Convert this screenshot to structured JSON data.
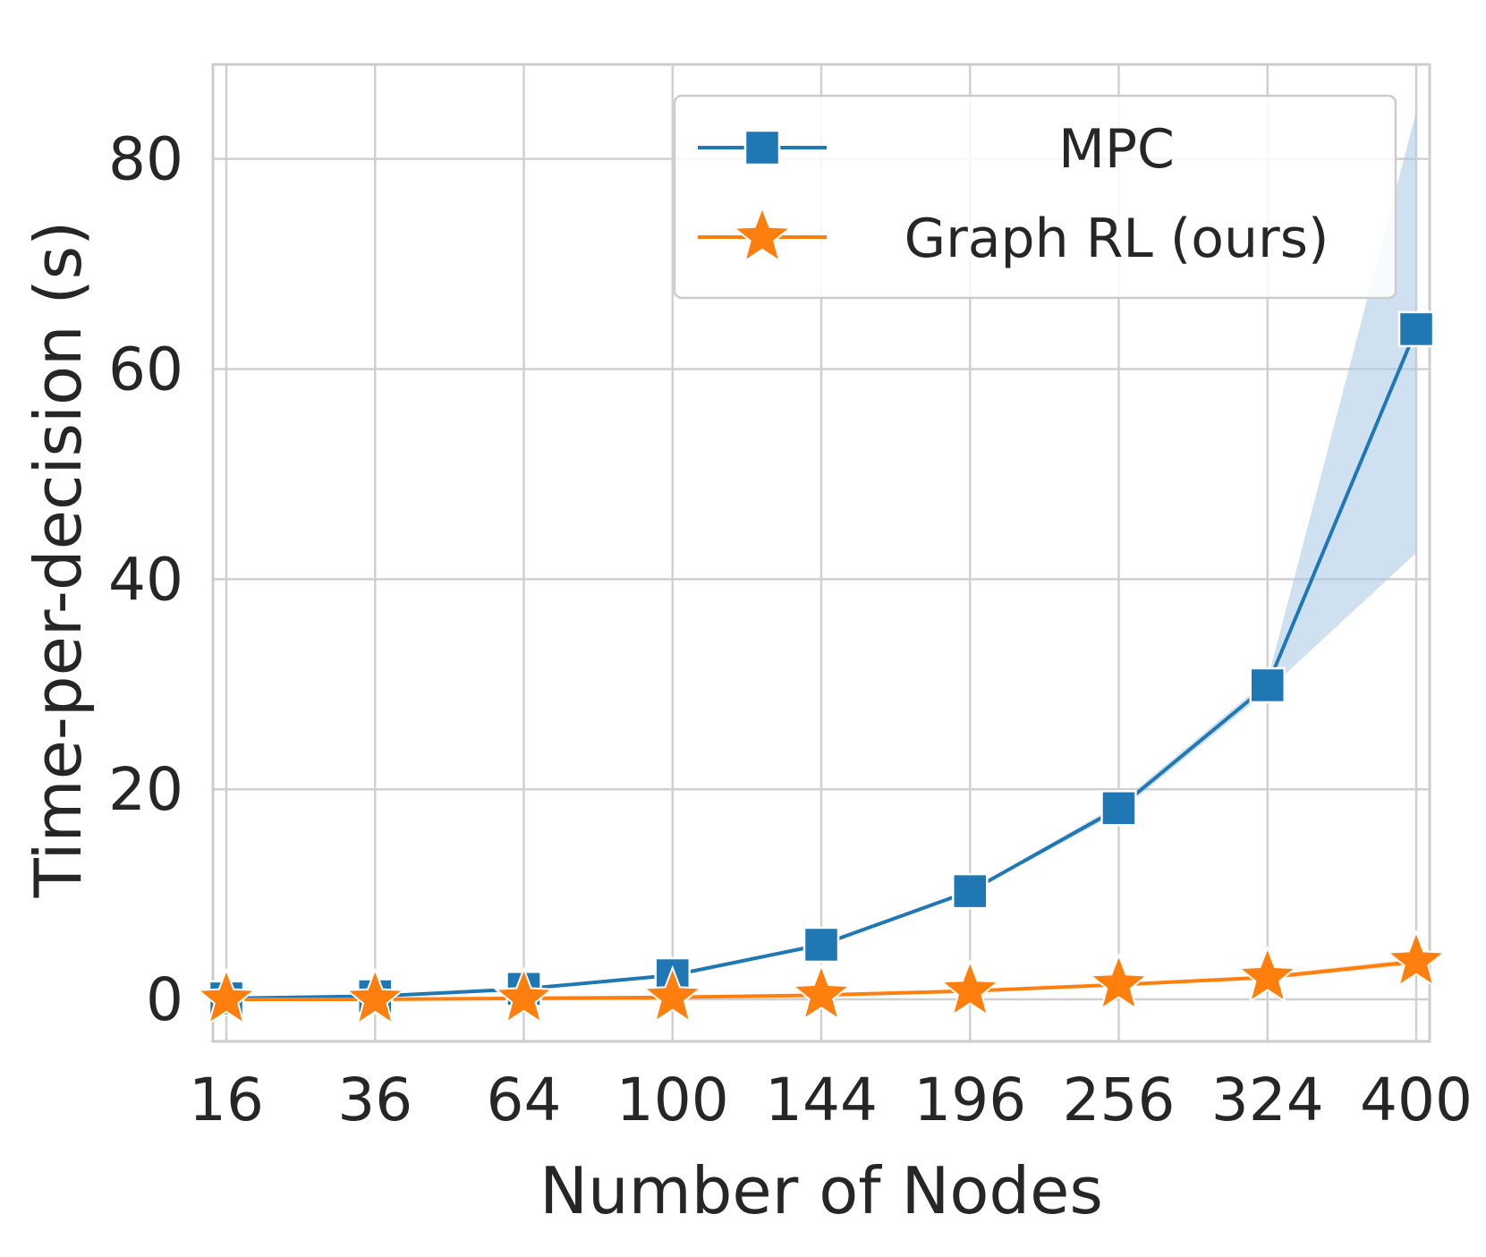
{
  "chart_data": {
    "type": "line",
    "title": "",
    "xlabel": "Number of Nodes",
    "ylabel": "Time-per-decision (s)",
    "categories": [
      "16",
      "36",
      "64",
      "100",
      "144",
      "196",
      "256",
      "324",
      "400"
    ],
    "yticks": [
      "0",
      "20",
      "40",
      "60",
      "80"
    ],
    "ylim": [
      -4,
      89
    ],
    "grid": true,
    "legend_position": "top-right",
    "series": [
      {
        "name": "MPC",
        "marker": "square",
        "color": "#1f77b4",
        "band_color": "#a8c8e6",
        "values": [
          0.1,
          0.3,
          1.0,
          2.3,
          5.2,
          10.3,
          18.2,
          29.9,
          63.8
        ],
        "lower": [
          0.1,
          0.3,
          1.0,
          2.3,
          5.2,
          10.2,
          17.8,
          29.4,
          42.5
        ],
        "upper": [
          0.1,
          0.3,
          1.0,
          2.3,
          5.2,
          10.4,
          18.6,
          30.4,
          84.5
        ]
      },
      {
        "name": "Graph RL (ours)",
        "marker": "star",
        "color": "#ff7f0e",
        "band_color": "#ffc89a",
        "values": [
          0.0,
          0.0,
          0.1,
          0.2,
          0.4,
          0.8,
          1.4,
          2.1,
          3.6
        ],
        "lower": [
          0.0,
          0.0,
          0.1,
          0.2,
          0.4,
          0.8,
          1.3,
          1.9,
          3.3
        ],
        "upper": [
          0.0,
          0.0,
          0.1,
          0.2,
          0.4,
          0.8,
          1.5,
          2.3,
          3.9
        ]
      }
    ]
  }
}
